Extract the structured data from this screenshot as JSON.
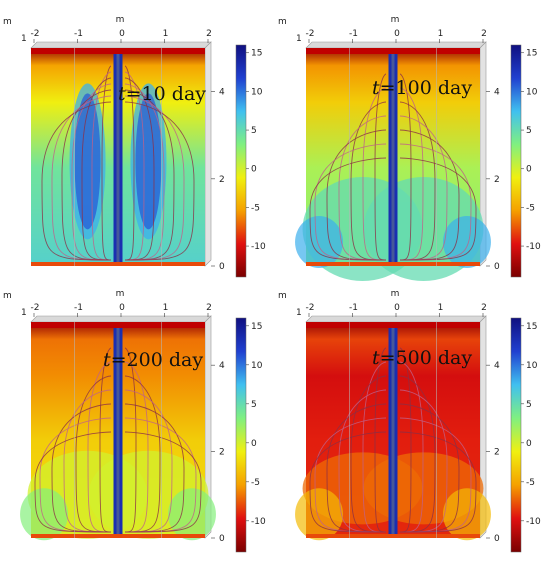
{
  "chart_data": [
    {
      "type": "heatmap",
      "time_label": "t=10 day",
      "time_var": "t",
      "time_text": "=10 day",
      "x_unit": "m",
      "y_unit": "m",
      "y_unit_corner": "1",
      "x_ticks": [
        "-2",
        "-1",
        "0",
        "1",
        "2"
      ],
      "y_ticks": [
        "0",
        "2",
        "4"
      ],
      "xlim": [
        -2,
        2
      ],
      "ylim": [
        0,
        5
      ],
      "colorbar_ticks": [
        "15",
        "10",
        "5",
        "0",
        "-5",
        "-10"
      ],
      "colorbar_range": [
        -14,
        16
      ],
      "colormap": [
        "#7a0000",
        "#e01010",
        "#f5a000",
        "#f0f010",
        "#80f080",
        "#40c0f0",
        "#2040d0",
        "#101080"
      ],
      "field_level_approx": 6
    },
    {
      "type": "heatmap",
      "time_label": "t=100 day",
      "time_var": "t",
      "time_text": "=100 day",
      "x_unit": "m",
      "y_unit": "m",
      "y_unit_corner": "1",
      "x_ticks": [
        "-2",
        "-1",
        "0",
        "1",
        "2"
      ],
      "y_ticks": [
        "0",
        "2",
        "4"
      ],
      "xlim": [
        -2,
        2
      ],
      "ylim": [
        0,
        5
      ],
      "colorbar_ticks": [
        "15",
        "10",
        "5",
        "0",
        "-5",
        "-10"
      ],
      "colorbar_range": [
        -14,
        16
      ],
      "colormap": [
        "#7a0000",
        "#e01010",
        "#f5a000",
        "#f0f010",
        "#80f080",
        "#40c0f0",
        "#2040d0",
        "#101080"
      ],
      "field_level_approx": 3
    },
    {
      "type": "heatmap",
      "time_label": "t=200 day",
      "time_var": "t",
      "time_text": "=200 day",
      "x_unit": "m",
      "y_unit": "m",
      "y_unit_corner": "1",
      "x_ticks": [
        "-2",
        "-1",
        "0",
        "1",
        "2"
      ],
      "y_ticks": [
        "0",
        "2",
        "4"
      ],
      "xlim": [
        -2,
        2
      ],
      "ylim": [
        0,
        5
      ],
      "colorbar_ticks": [
        "15",
        "10",
        "5",
        "0",
        "-5",
        "-10"
      ],
      "colorbar_range": [
        -14,
        16
      ],
      "colormap": [
        "#7a0000",
        "#e01010",
        "#f5a000",
        "#f0f010",
        "#80f080",
        "#40c0f0",
        "#2040d0",
        "#101080"
      ],
      "field_level_approx": -2
    },
    {
      "type": "heatmap",
      "time_label": "t=500 day",
      "time_var": "t",
      "time_text": "=500 day",
      "x_unit": "m",
      "y_unit": "m",
      "y_unit_corner": "1",
      "x_ticks": [
        "-2",
        "-1",
        "0",
        "1",
        "2"
      ],
      "y_ticks": [
        "0",
        "2",
        "4"
      ],
      "xlim": [
        -2,
        2
      ],
      "ylim": [
        0,
        5
      ],
      "colorbar_ticks": [
        "15",
        "10",
        "5",
        "0",
        "-5",
        "-10"
      ],
      "colorbar_range": [
        -14,
        16
      ],
      "colormap": [
        "#7a0000",
        "#e01010",
        "#f5a000",
        "#f0f010",
        "#80f080",
        "#40c0f0",
        "#2040d0",
        "#101080"
      ],
      "field_level_approx": -9
    }
  ]
}
